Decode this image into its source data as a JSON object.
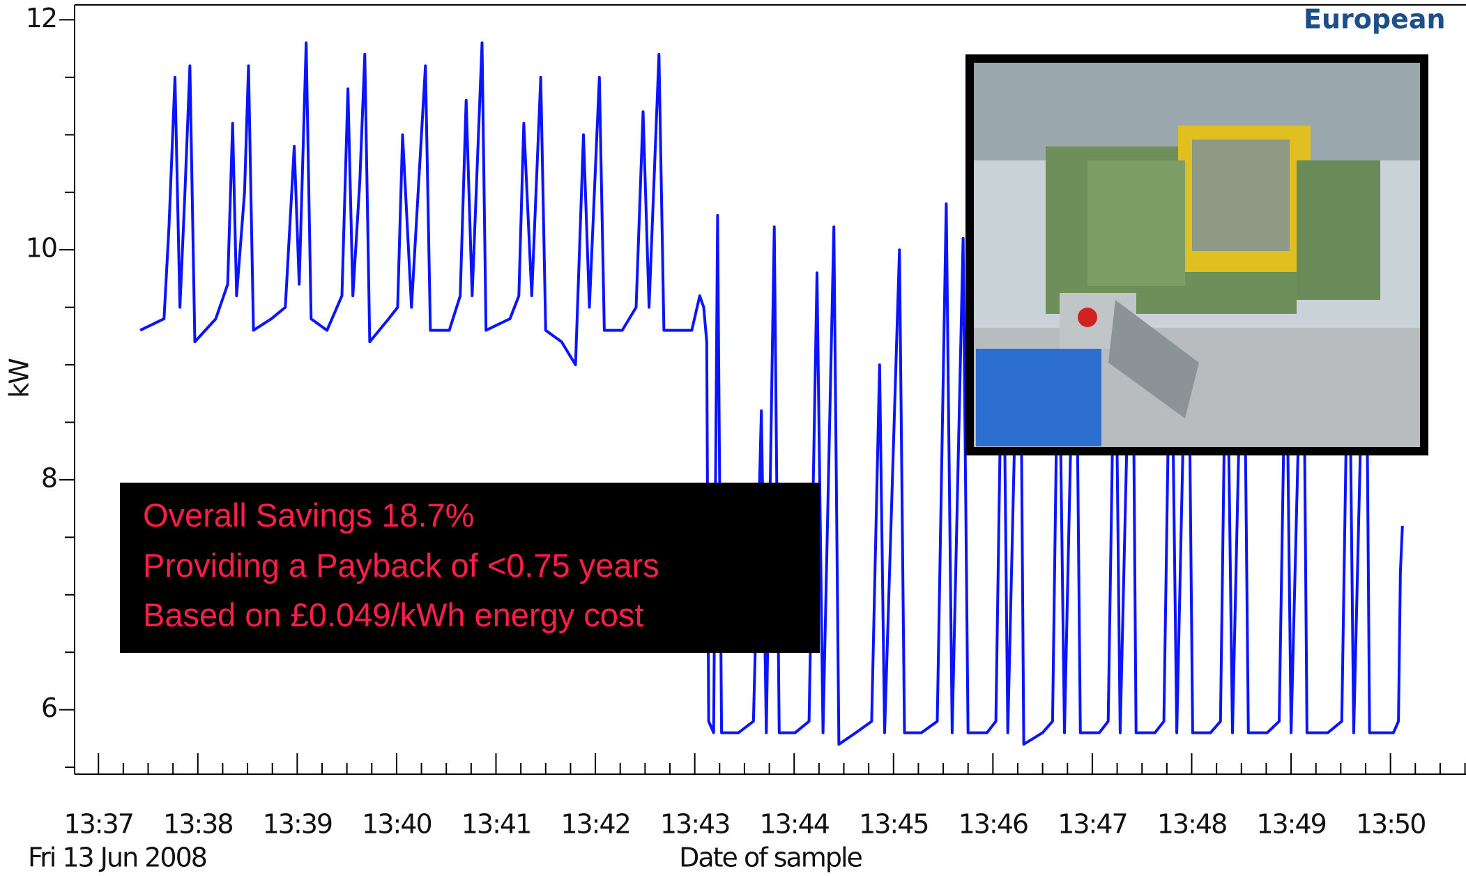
{
  "chart_data": {
    "type": "line",
    "y_label": "kW",
    "x_label": "Date of sample",
    "date_label": "Fri 13 Jun 2008",
    "logo_text": "European",
    "annotations": [
      "Overall Savings 18.7%",
      "Providing a Payback of <0.75 years",
      "Based on £0.049/kWh energy cost"
    ],
    "color": "#0a14ff",
    "xlim": [
      816.76,
      830.76
    ],
    "ylim": [
      5.44,
      12.13
    ],
    "yticks": [
      6,
      8,
      10,
      12
    ],
    "yticks_minor": [
      5.5,
      6.5,
      7,
      7.5,
      8.5,
      9,
      9.5,
      10.5,
      11,
      11.5
    ],
    "xticks": [
      {
        "value": 817,
        "label": "13:37"
      },
      {
        "value": 818,
        "label": "13:38"
      },
      {
        "value": 819,
        "label": "13:39"
      },
      {
        "value": 820,
        "label": "13:40"
      },
      {
        "value": 821,
        "label": "13:41"
      },
      {
        "value": 822,
        "label": "13:42"
      },
      {
        "value": 823,
        "label": "13:43"
      },
      {
        "value": 824,
        "label": "13:44"
      },
      {
        "value": 825,
        "label": "13:45"
      },
      {
        "value": 826,
        "label": "13:46"
      },
      {
        "value": 827,
        "label": "13:47"
      },
      {
        "value": 828,
        "label": "13:48"
      },
      {
        "value": 829,
        "label": "13:49"
      },
      {
        "value": 830,
        "label": "13:50"
      }
    ],
    "xticks_minor": [
      817.25,
      817.5,
      817.75,
      818.25,
      818.5,
      818.75,
      819.25,
      819.5,
      819.75,
      820.25,
      820.5,
      820.75,
      821.25,
      821.5,
      821.75,
      822.25,
      822.5,
      822.75,
      823.25,
      823.5,
      823.75,
      824.25,
      824.5,
      824.75,
      825.25,
      825.5,
      825.75,
      826.25,
      826.5,
      826.75,
      827.25,
      827.5,
      827.75,
      828.25,
      828.5,
      828.75,
      829.25,
      829.5,
      829.75,
      830.25,
      830.5,
      830.75
    ],
    "x": [
      817.42,
      817.66,
      817.71,
      817.77,
      817.82,
      817.87,
      817.92,
      817.97,
      818.18,
      818.3,
      818.35,
      818.39,
      818.47,
      818.51,
      818.56,
      818.74,
      818.88,
      818.97,
      819.02,
      819.09,
      819.14,
      819.3,
      819.45,
      819.51,
      819.56,
      819.63,
      819.68,
      819.73,
      819.92,
      820.01,
      820.06,
      820.15,
      820.29,
      820.34,
      820.53,
      820.64,
      820.7,
      820.76,
      820.86,
      820.9,
      821.14,
      821.23,
      821.28,
      821.36,
      821.45,
      821.5,
      821.66,
      821.8,
      821.88,
      821.94,
      822.04,
      822.09,
      822.27,
      822.41,
      822.48,
      822.54,
      822.64,
      822.69,
      822.97,
      823.05,
      823.09,
      823.12,
      823.14,
      823.19,
      823.23,
      823.27,
      823.44,
      823.59,
      823.67,
      823.72,
      823.8,
      823.85,
      824.01,
      824.15,
      824.23,
      824.29,
      824.4,
      824.45,
      824.62,
      824.78,
      824.86,
      824.91,
      825.06,
      825.11,
      825.28,
      825.44,
      825.53,
      825.59,
      825.7,
      825.75,
      825.94,
      826.03,
      826.1,
      826.15,
      826.27,
      826.31,
      826.5,
      826.6,
      826.66,
      826.72,
      826.83,
      826.88,
      827.07,
      827.16,
      827.23,
      827.28,
      827.4,
      827.44,
      827.63,
      827.72,
      827.79,
      827.85,
      827.96,
      828.01,
      828.19,
      828.29,
      828.35,
      828.41,
      828.52,
      828.57,
      828.76,
      828.88,
      828.95,
      829.0,
      829.12,
      829.16,
      829.37,
      829.51,
      829.58,
      829.63,
      829.75,
      829.79,
      830.03,
      830.08,
      830.1,
      830.12
    ],
    "values": [
      9.3,
      9.4,
      10.2,
      11.5,
      9.5,
      10.5,
      11.6,
      9.2,
      9.4,
      9.7,
      11.1,
      9.6,
      10.5,
      11.6,
      9.3,
      9.4,
      9.5,
      10.9,
      9.7,
      11.8,
      9.4,
      9.3,
      9.6,
      11.4,
      9.6,
      10.6,
      11.7,
      9.2,
      9.4,
      9.5,
      11.0,
      9.5,
      11.6,
      9.3,
      9.3,
      9.6,
      11.3,
      9.6,
      11.8,
      9.3,
      9.4,
      9.6,
      11.1,
      9.6,
      11.5,
      9.3,
      9.2,
      9.0,
      11.0,
      9.5,
      11.5,
      9.3,
      9.3,
      9.5,
      11.2,
      9.5,
      11.7,
      9.3,
      9.3,
      9.6,
      9.5,
      9.2,
      5.9,
      5.8,
      10.3,
      5.8,
      5.8,
      5.9,
      8.6,
      5.8,
      10.2,
      5.8,
      5.8,
      5.9,
      9.8,
      5.8,
      10.2,
      5.7,
      5.8,
      5.9,
      9.0,
      5.8,
      10.0,
      5.8,
      5.8,
      5.9,
      10.4,
      5.8,
      10.1,
      5.8,
      5.8,
      5.9,
      9.9,
      5.8,
      10.3,
      5.7,
      5.8,
      5.9,
      9.7,
      5.8,
      10.2,
      5.8,
      5.8,
      5.9,
      9.8,
      5.8,
      10.3,
      5.8,
      5.8,
      5.9,
      9.9,
      5.8,
      10.2,
      5.8,
      5.8,
      5.9,
      9.8,
      5.8,
      10.1,
      5.8,
      5.8,
      5.9,
      9.6,
      5.8,
      10.0,
      5.8,
      5.8,
      5.9,
      9.8,
      5.8,
      10.2,
      5.8,
      5.8,
      5.9,
      7.2,
      7.6
    ]
  }
}
